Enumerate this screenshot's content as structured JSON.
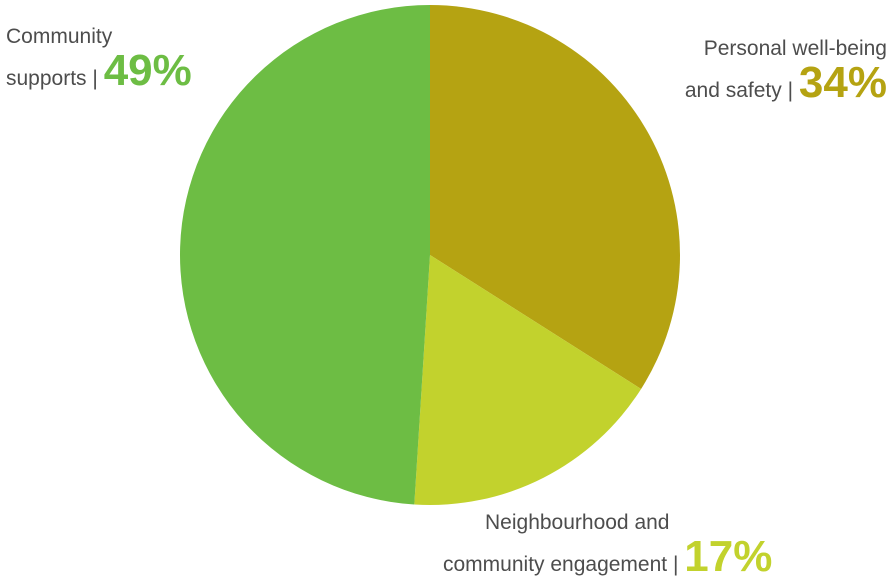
{
  "chart_data": {
    "type": "pie",
    "title": "",
    "slices": [
      {
        "name_line1": "Personal well-being",
        "name_line2": "and safety",
        "value": 34,
        "value_label": "34%",
        "color": "#b5a312"
      },
      {
        "name_line1": "Neighbourhood and",
        "name_line2": "community engagement",
        "value": 17,
        "value_label": "17%",
        "color": "#c2d22d"
      },
      {
        "name_line1": "Community",
        "name_line2": "supports",
        "value": 49,
        "value_label": "49%",
        "color": "#6dbd44"
      }
    ],
    "separator": "|",
    "start": "12 o'clock",
    "direction": "clockwise",
    "legend": "none"
  }
}
